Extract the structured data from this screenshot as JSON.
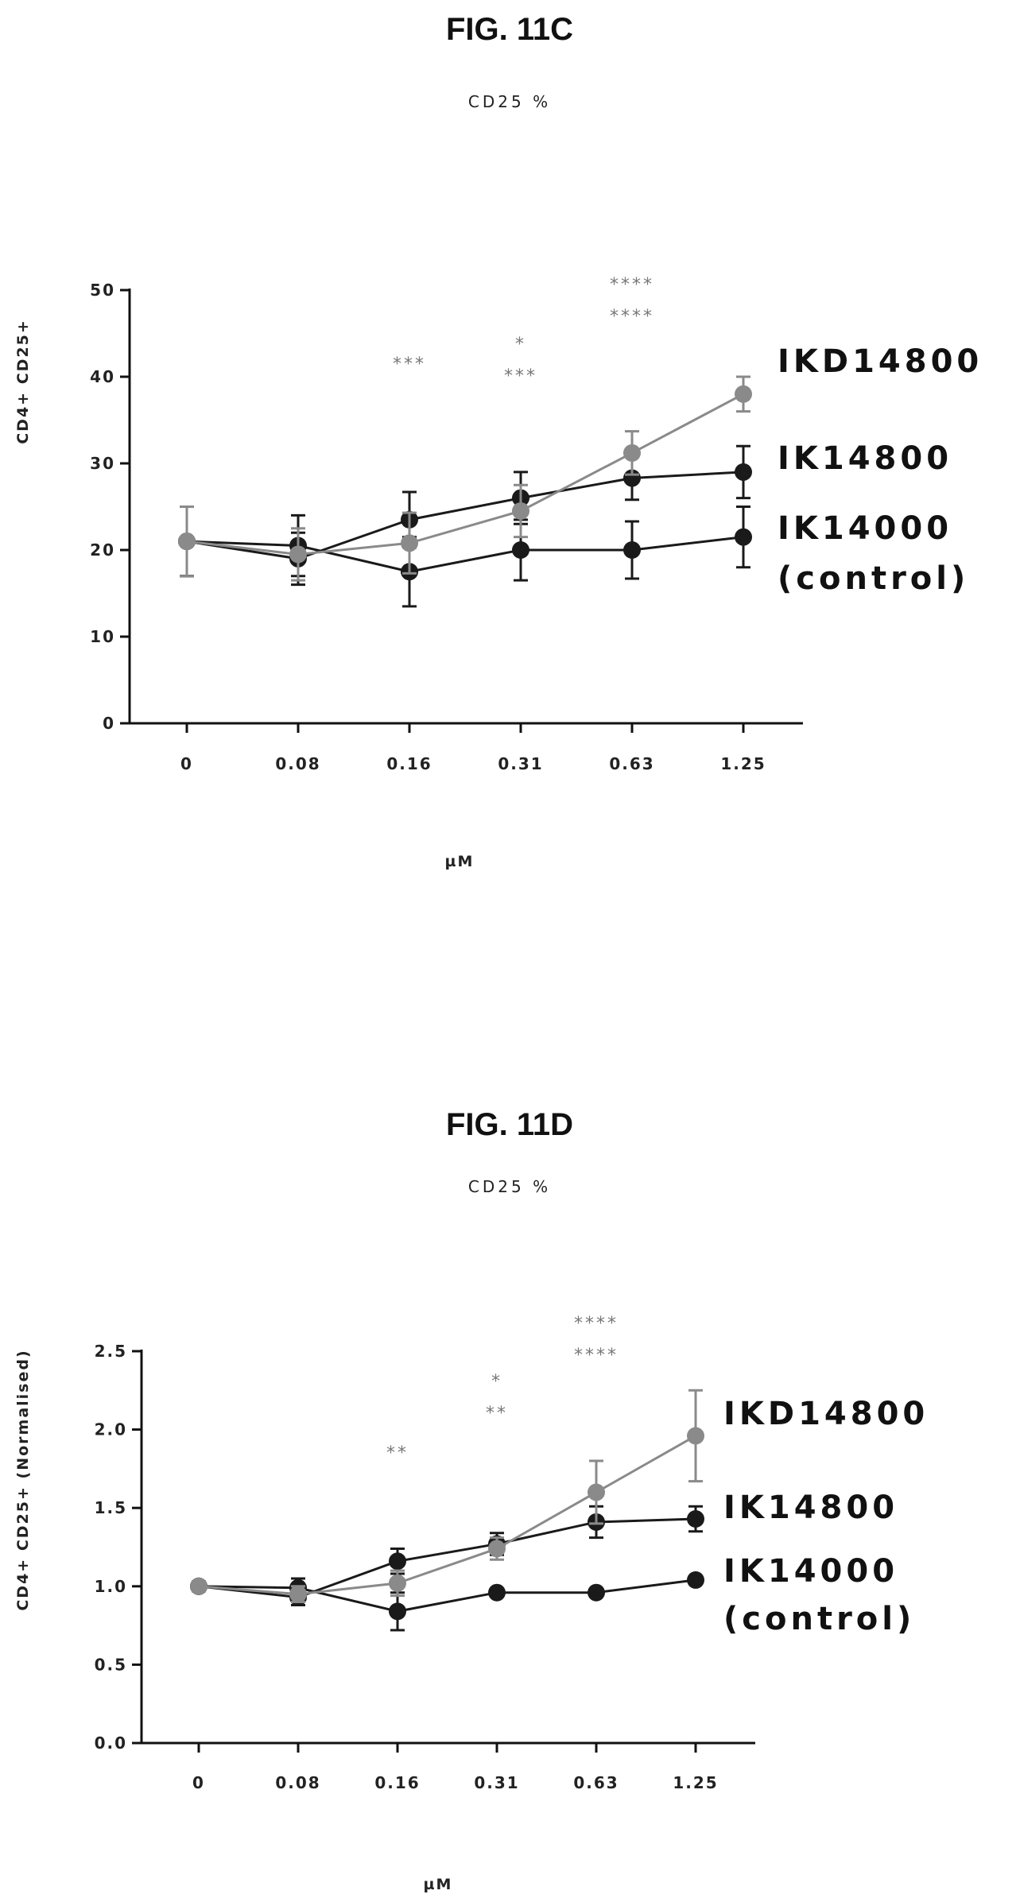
{
  "chart_data": [
    {
      "type": "line",
      "figure_label": "FIG. 11C",
      "title": "CD25 %",
      "xlabel": "µM",
      "ylabel": "CD4+ CD25+",
      "categories": [
        "0",
        "0.08",
        "0.16",
        "0.31",
        "0.63",
        "1.25"
      ],
      "ylim": [
        0,
        50
      ],
      "yticks": [
        "0",
        "10",
        "20",
        "30",
        "40",
        "50"
      ],
      "series": [
        {
          "name": "IKD14800",
          "color": "#8a8a8a",
          "values": [
            21,
            19.5,
            20.8,
            24.5,
            31.2,
            38
          ],
          "errors": [
            4,
            3,
            3.5,
            3,
            2.5,
            2
          ]
        },
        {
          "name": "IK14800",
          "color": "#1a1a1a",
          "values": [
            21,
            19,
            23.5,
            26,
            28.3,
            29
          ],
          "errors": [
            4,
            3,
            3.2,
            3,
            2.5,
            3
          ]
        },
        {
          "name": "IK14000 (control)",
          "color": "#1a1a1a",
          "values": [
            21,
            20.5,
            17.5,
            20,
            20,
            21.5
          ],
          "errors": [
            4,
            3.5,
            4,
            3.5,
            3.3,
            3.5
          ]
        }
      ],
      "significance": [
        {
          "category": "0.16",
          "rows": [
            "***"
          ]
        },
        {
          "category": "0.31",
          "rows": [
            "*",
            "***"
          ]
        },
        {
          "category": "0.63",
          "rows": [
            "****",
            "****"
          ]
        },
        {
          "category": "1.25",
          "rows": [
            "****",
            "****"
          ]
        }
      ],
      "grid": false
    },
    {
      "type": "line",
      "figure_label": "FIG. 11D",
      "title": "CD25 %",
      "xlabel": "µM",
      "ylabel": "CD4+ CD25+ (Normalised)",
      "categories": [
        "0",
        "0.08",
        "0.16",
        "0.31",
        "0.63",
        "1.25"
      ],
      "ylim": [
        0,
        2.5
      ],
      "yticks": [
        "0.0",
        "0.5",
        "1.0",
        "1.5",
        "2.0",
        "2.5"
      ],
      "series": [
        {
          "name": "IKD14800",
          "color": "#8a8a8a",
          "values": [
            1.0,
            0.95,
            1.02,
            1.24,
            1.6,
            1.96
          ],
          "errors": [
            0.03,
            0.05,
            0.08,
            0.07,
            0.2,
            0.29
          ]
        },
        {
          "name": "IK14800",
          "color": "#1a1a1a",
          "values": [
            1.0,
            0.93,
            1.16,
            1.27,
            1.41,
            1.43
          ],
          "errors": [
            0.03,
            0.05,
            0.08,
            0.07,
            0.1,
            0.08
          ]
        },
        {
          "name": "IK14000 (control)",
          "color": "#1a1a1a",
          "values": [
            1.0,
            0.99,
            0.84,
            0.96,
            0.96,
            1.04
          ],
          "errors": [
            0.03,
            0.06,
            0.12,
            0.02,
            0.02,
            0.02
          ]
        }
      ],
      "significance": [
        {
          "category": "0.16",
          "rows": [
            "**"
          ]
        },
        {
          "category": "0.31",
          "rows": [
            "*",
            "**"
          ]
        },
        {
          "category": "0.63",
          "rows": [
            "****",
            "****"
          ]
        },
        {
          "category": "1.25",
          "rows": [
            "****",
            "***"
          ]
        }
      ],
      "grid": false
    }
  ]
}
